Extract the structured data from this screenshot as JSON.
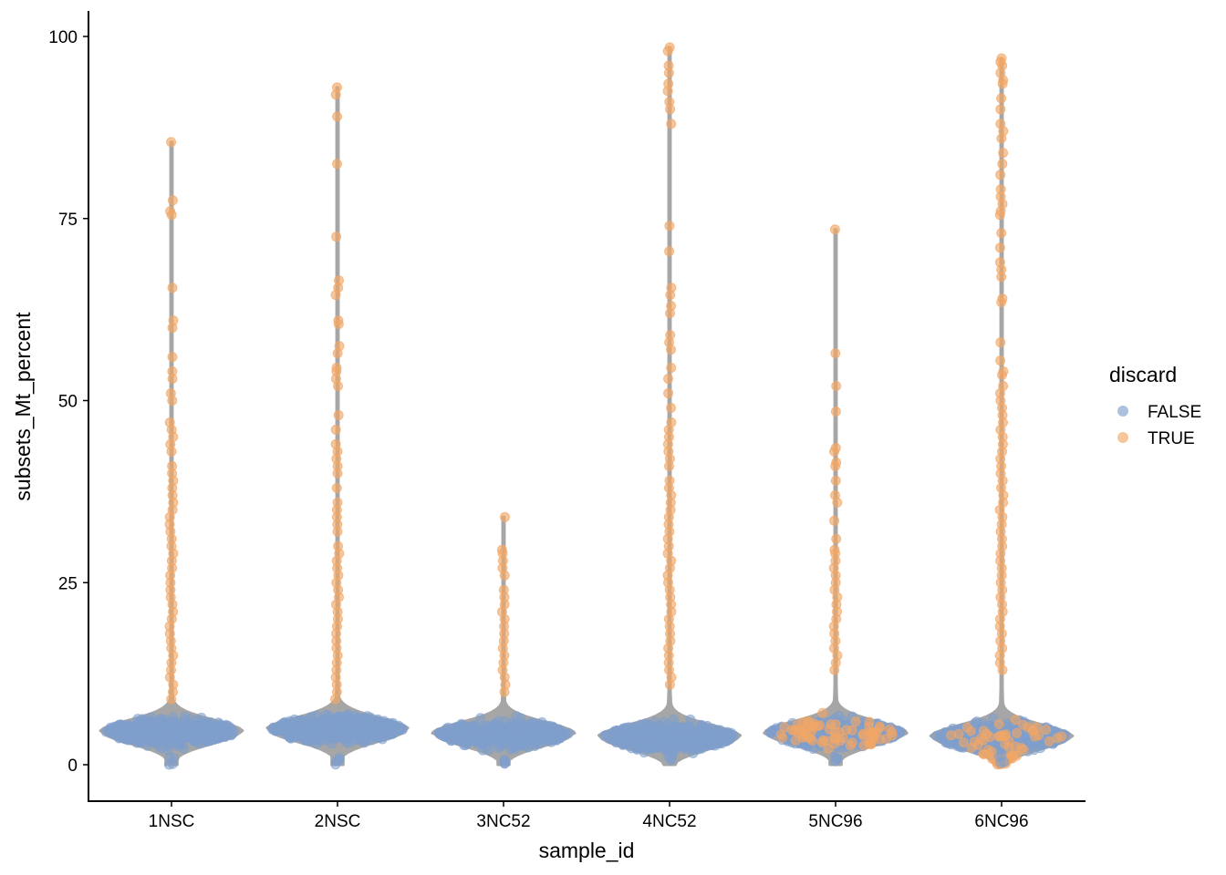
{
  "chart_data": {
    "type": "violin",
    "xlabel": "sample_id",
    "ylabel": "subsets_Mt_percent",
    "categories": [
      "1NSC",
      "2NSC",
      "3NC52",
      "4NC52",
      "5NC96",
      "6NC96"
    ],
    "yticks": [
      "0",
      "25",
      "50",
      "75",
      "100"
    ],
    "ylim": [
      -5,
      103.5
    ],
    "legend": {
      "title": "discard",
      "entries": [
        {
          "label": "FALSE",
          "color": "#7f9fcc"
        },
        {
          "label": "TRUE",
          "color": "#f2a766"
        }
      ],
      "position": "right"
    },
    "colors": {
      "violin_fill": "#a6a6a6",
      "false": "#7f9fcc",
      "true": "#f2a766"
    },
    "series": [
      {
        "name": "1NSC",
        "min": 0,
        "max": 85.5,
        "median": 4.6,
        "mode": 4.5,
        "max_halfwidth_fraction": 0.43,
        "false_range": [
          0,
          8
        ],
        "true_outliers": [
          85.5,
          77.5,
          76,
          75.5,
          65.5,
          61,
          60,
          56,
          54,
          53,
          51,
          50,
          47,
          46,
          45,
          44,
          43,
          41,
          40,
          39,
          38,
          37,
          36,
          35,
          34,
          33,
          32,
          31,
          30,
          29,
          28,
          27,
          26,
          25,
          24,
          23,
          22,
          21,
          20,
          19,
          18,
          17,
          16,
          15,
          14,
          13,
          12,
          11,
          10,
          9
        ]
      },
      {
        "name": "2NSC",
        "min": 0,
        "max": 93,
        "median": 4.8,
        "mode": 4.8,
        "max_halfwidth_fraction": 0.43,
        "false_range": [
          0,
          8
        ],
        "true_outliers": [
          93,
          92,
          89,
          82.5,
          72.5,
          66.5,
          65.5,
          64.5,
          61,
          60.5,
          57.5,
          56.5,
          54.5,
          54,
          53,
          52,
          48,
          46,
          44,
          43,
          42,
          41,
          40,
          38,
          36,
          35,
          34,
          33,
          32,
          30,
          29,
          28,
          27,
          26,
          25,
          24,
          23,
          22,
          21,
          20,
          19,
          18,
          17,
          16,
          15,
          14,
          13,
          12,
          11,
          10,
          9
        ]
      },
      {
        "name": "3NC52",
        "min": 0,
        "max": 34,
        "median": 4.5,
        "mode": 4.2,
        "max_halfwidth_fraction": 0.43,
        "false_range": [
          0,
          9
        ],
        "true_outliers": [
          34,
          29.5,
          29,
          28,
          27,
          26,
          24,
          23,
          22,
          21,
          20,
          19,
          18,
          17,
          16,
          15,
          14,
          13,
          12,
          11,
          10
        ]
      },
      {
        "name": "4NC52",
        "min": 0,
        "max": 98.5,
        "median": 4.2,
        "mode": 3.8,
        "max_halfwidth_fraction": 0.43,
        "false_range": [
          0,
          10
        ],
        "true_outliers": [
          98.5,
          98,
          96,
          95,
          93.5,
          92.5,
          91,
          90,
          88,
          74,
          70.5,
          65.5,
          64.5,
          63,
          62,
          59,
          58,
          57,
          54.5,
          53,
          51,
          49,
          47,
          46,
          45,
          44,
          43,
          42,
          41,
          39,
          38,
          37,
          36,
          35,
          34,
          33,
          32,
          31,
          30,
          29,
          28,
          27,
          26,
          25,
          24,
          23,
          22,
          21,
          20,
          19,
          18,
          17,
          16,
          15,
          14,
          13,
          12,
          11
        ]
      },
      {
        "name": "5NC96",
        "min": 0,
        "max": 73.5,
        "median": 4.8,
        "mode": 4.3,
        "max_halfwidth_fraction": 0.43,
        "false_range": [
          0,
          12
        ],
        "true_outliers": [
          73.5,
          56.5,
          52,
          48.5,
          43.5,
          43,
          41.5,
          41,
          39,
          37,
          36,
          33.5,
          31,
          29.5,
          29,
          28,
          27,
          26,
          25,
          24,
          23,
          22,
          21,
          20,
          19,
          18,
          17,
          16,
          15,
          14,
          13
        ]
      },
      {
        "name": "6NC96",
        "min": 0,
        "max": 97,
        "median": 4.3,
        "mode": 3.8,
        "max_halfwidth_fraction": 0.43,
        "false_range": [
          0,
          12
        ],
        "true_outliers": [
          97,
          96.5,
          96,
          95,
          94,
          93.5,
          91.5,
          90,
          88,
          87,
          86,
          84,
          82.5,
          81,
          79,
          78,
          77,
          76,
          75.5,
          73,
          71,
          69,
          68,
          67,
          64,
          63.5,
          58,
          55.5,
          54,
          53.5,
          52,
          51,
          50,
          49,
          48,
          47,
          46,
          45,
          44,
          43,
          42,
          41,
          40,
          39,
          38,
          37,
          36,
          35,
          34,
          33,
          32,
          31,
          30,
          29,
          28,
          27,
          26,
          25,
          24,
          23,
          22,
          21,
          20,
          19,
          18,
          17,
          16,
          15,
          14,
          13
        ]
      }
    ]
  }
}
